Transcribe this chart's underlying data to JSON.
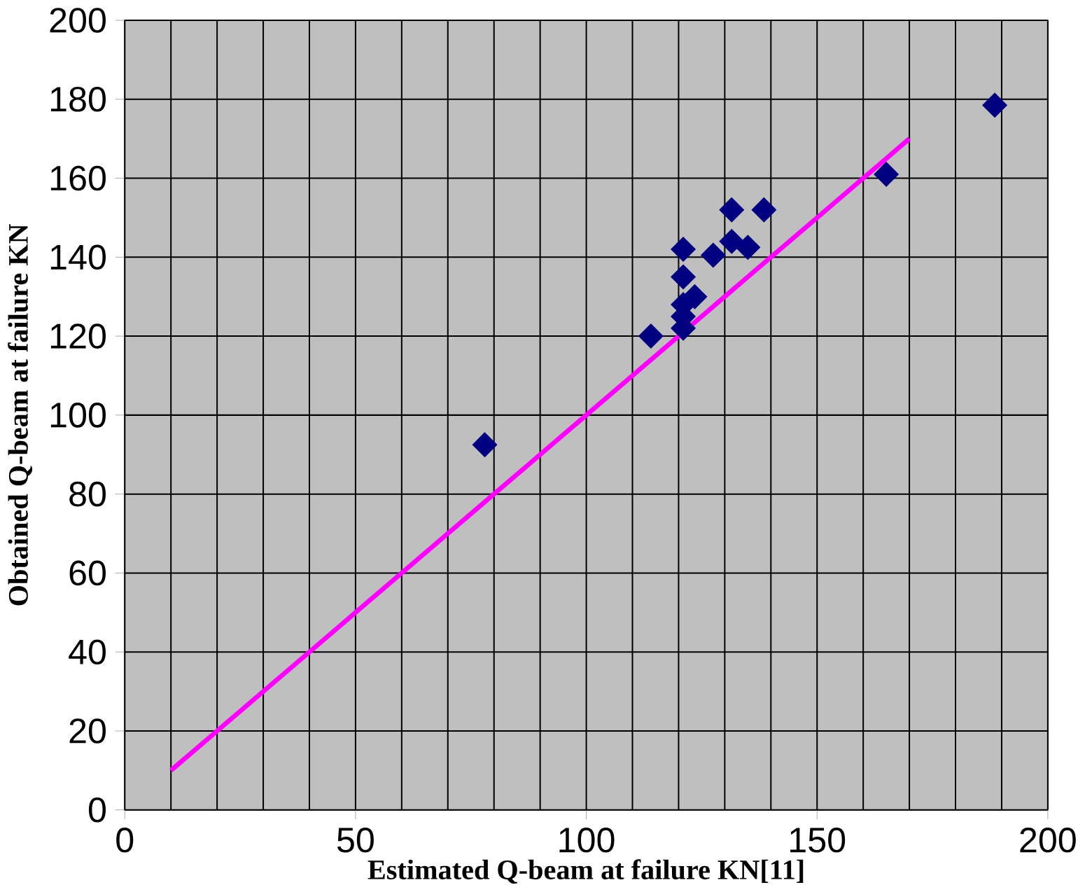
{
  "chart_data": {
    "type": "scatter",
    "xlabel": "Estimated Q-beam at failure KN[11]",
    "ylabel": "Obtained Q-beam at failure KN",
    "xlim": [
      0,
      200
    ],
    "xticks": [
      0,
      50,
      100,
      150,
      200
    ],
    "ylim": [
      0,
      200
    ],
    "yticks": [
      0,
      20,
      40,
      60,
      80,
      100,
      120,
      140,
      160,
      180,
      200
    ],
    "grid": true,
    "series": [
      {
        "color": "#000080",
        "marker": "diamond",
        "x": [
          78,
          114,
          121,
          121,
          121,
          121,
          121,
          123.5,
          127.5,
          131.5,
          131.5,
          135,
          138.5,
          165,
          188.5
        ],
        "values": [
          92.5,
          120,
          142,
          135,
          128,
          125,
          122,
          130,
          140.5,
          152,
          144,
          142.5,
          152,
          161,
          178.5
        ]
      },
      {
        "type": "line",
        "color": "#ff00ff",
        "marker": "none",
        "line_style": "solid",
        "x": [
          10,
          20,
          30,
          40,
          50,
          60,
          70,
          80,
          90,
          100,
          110,
          120,
          130,
          140,
          150,
          160,
          170
        ],
        "values": [
          10,
          20,
          30,
          40,
          50,
          60,
          70,
          80,
          90,
          100,
          110,
          120,
          130,
          140,
          150,
          160,
          170
        ]
      }
    ]
  }
}
